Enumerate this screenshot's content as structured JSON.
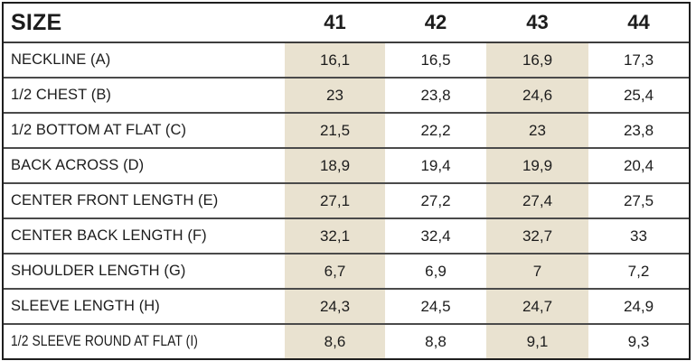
{
  "colors": {
    "highlight_column": "#e9e2d0",
    "border_outer": "#1e1e1e",
    "border_inner": "#4a4a4a",
    "text": "#1c1c1c"
  },
  "table": {
    "header": {
      "label": "SIZE",
      "sizes": [
        "41",
        "42",
        "43",
        "44"
      ]
    },
    "rows": [
      {
        "label": "NECKLINE (A)",
        "values": [
          "16,1",
          "16,5",
          "16,9",
          "17,3"
        ]
      },
      {
        "label": "1/2 CHEST (B)",
        "values": [
          "23",
          "23,8",
          "24,6",
          "25,4"
        ]
      },
      {
        "label": "1/2 BOTTOM AT FLAT (C)",
        "values": [
          "21,5",
          "22,2",
          "23",
          "23,8"
        ]
      },
      {
        "label": "BACK ACROSS (D)",
        "values": [
          "18,9",
          "19,4",
          "19,9",
          "20,4"
        ]
      },
      {
        "label": "CENTER FRONT LENGTH (E)",
        "values": [
          "27,1",
          "27,2",
          "27,4",
          "27,5"
        ]
      },
      {
        "label": "CENTER BACK LENGTH (F)",
        "values": [
          "32,1",
          "32,4",
          "32,7",
          "33"
        ]
      },
      {
        "label": "SHOULDER LENGTH (G)",
        "values": [
          "6,7",
          "6,9",
          "7",
          "7,2"
        ]
      },
      {
        "label": "SLEEVE LENGTH (H)",
        "values": [
          "24,3",
          "24,5",
          "24,7",
          "24,9"
        ]
      },
      {
        "label": "1/2 SLEEVE ROUND AT FLAT (I)",
        "values": [
          "8,6",
          "8,8",
          "9,1",
          "9,3"
        ]
      }
    ]
  },
  "chart_data": {
    "type": "table",
    "title": "Garment size chart (measurements per size)",
    "columns": [
      "SIZE",
      "41",
      "42",
      "43",
      "44"
    ],
    "highlighted_columns": [
      "41",
      "43"
    ],
    "rows": [
      [
        "NECKLINE (A)",
        16.1,
        16.5,
        16.9,
        17.3
      ],
      [
        "1/2 CHEST (B)",
        23,
        23.8,
        24.6,
        25.4
      ],
      [
        "1/2 BOTTOM AT FLAT (C)",
        21.5,
        22.2,
        23,
        23.8
      ],
      [
        "BACK ACROSS (D)",
        18.9,
        19.4,
        19.9,
        20.4
      ],
      [
        "CENTER FRONT LENGTH (E)",
        27.1,
        27.2,
        27.4,
        27.5
      ],
      [
        "CENTER BACK LENGTH (F)",
        32.1,
        32.4,
        32.7,
        33
      ],
      [
        "SHOULDER LENGTH (G)",
        6.7,
        6.9,
        7,
        7.2
      ],
      [
        "SLEEVE LENGTH (H)",
        24.3,
        24.5,
        24.7,
        24.9
      ],
      [
        "1/2 SLEEVE ROUND AT FLAT (I)",
        8.6,
        8.8,
        9.1,
        9.3
      ]
    ],
    "decimal_separator": ","
  }
}
